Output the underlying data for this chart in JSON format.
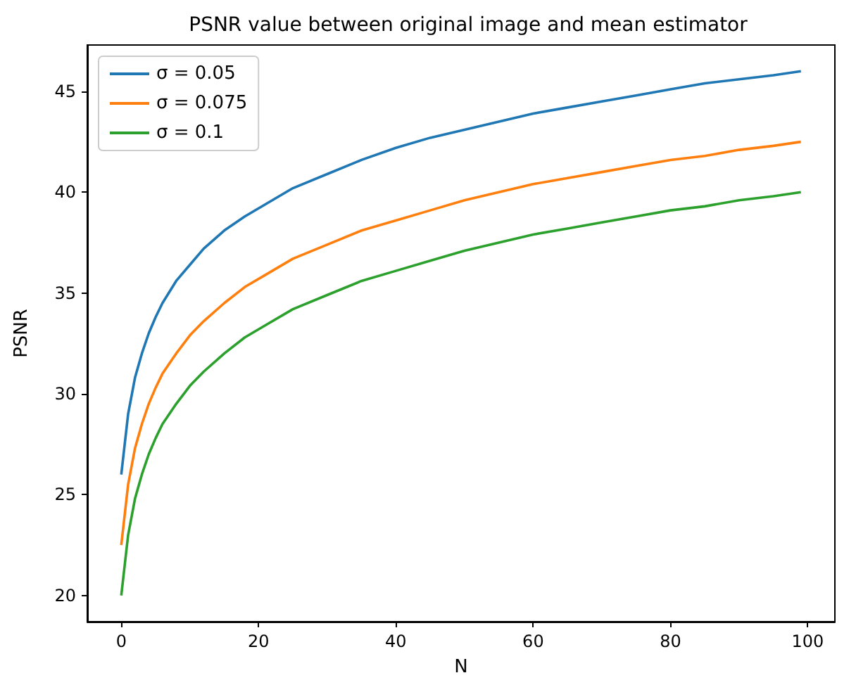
{
  "chart_data": {
    "type": "line",
    "title": "PSNR value between original image and mean estimator",
    "xlabel": "N",
    "ylabel": "PSNR",
    "x": [
      0,
      1,
      2,
      3,
      4,
      5,
      6,
      8,
      10,
      12,
      15,
      18,
      21,
      25,
      30,
      35,
      40,
      45,
      50,
      55,
      60,
      65,
      70,
      75,
      80,
      85,
      90,
      95,
      99
    ],
    "series": [
      {
        "name": "σ = 0.05",
        "color": "#1f77b4",
        "values": [
          26.0,
          29.0,
          30.8,
          32.0,
          33.0,
          33.8,
          34.5,
          35.6,
          36.4,
          37.2,
          38.1,
          38.8,
          39.4,
          40.2,
          40.9,
          41.6,
          42.2,
          42.7,
          43.1,
          43.5,
          43.9,
          44.2,
          44.5,
          44.8,
          45.1,
          45.4,
          45.6,
          45.8,
          46.0
        ]
      },
      {
        "name": "σ = 0.075",
        "color": "#ff7f0e",
        "values": [
          22.5,
          25.5,
          27.3,
          28.5,
          29.5,
          30.3,
          31.0,
          32.0,
          32.9,
          33.6,
          34.5,
          35.3,
          35.9,
          36.7,
          37.4,
          38.1,
          38.6,
          39.1,
          39.6,
          40.0,
          40.4,
          40.7,
          41.0,
          41.3,
          41.6,
          41.8,
          42.1,
          42.3,
          42.5
        ]
      },
      {
        "name": "σ = 0.1",
        "color": "#2ca02c",
        "values": [
          20.0,
          23.0,
          24.8,
          26.0,
          27.0,
          27.8,
          28.5,
          29.5,
          30.4,
          31.1,
          32.0,
          32.8,
          33.4,
          34.2,
          34.9,
          35.6,
          36.1,
          36.6,
          37.1,
          37.5,
          37.9,
          38.2,
          38.5,
          38.8,
          39.1,
          39.3,
          39.6,
          39.8,
          40.0
        ]
      }
    ],
    "xlim": [
      -4.95,
      103.95
    ],
    "ylim": [
      18.7,
      47.3
    ],
    "xticks": [
      0,
      20,
      40,
      60,
      80,
      100
    ],
    "yticks": [
      20,
      25,
      30,
      35,
      40,
      45
    ],
    "grid": false,
    "legend": "top left",
    "marker": "none",
    "line_style": "solid"
  }
}
